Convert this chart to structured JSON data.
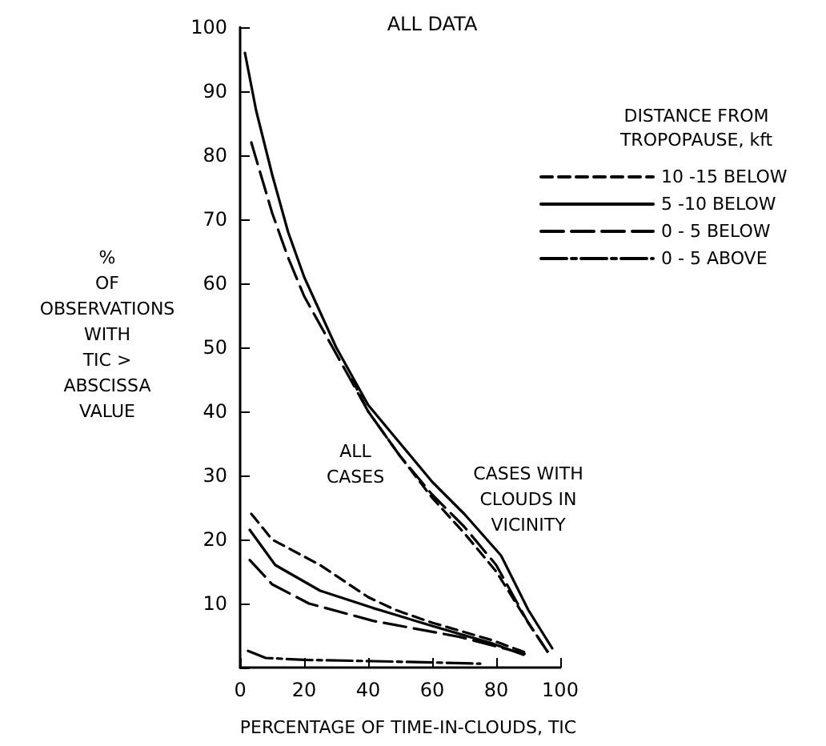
{
  "chart_data": {
    "type": "line",
    "title": "ALL DATA",
    "xlabel": "PERCENTAGE OF TIME-IN-CLOUDS, TIC",
    "ylabel": "%\nOF\nOBSERVATIONS\nWITH\nTIC >\nABSCISSA\nVALUE",
    "legend_title": "DISTANCE FROM\nTROPOPAUSE, kft",
    "xlim": [
      0,
      100
    ],
    "ylim": [
      0,
      100
    ],
    "xticks": [
      0,
      20,
      40,
      60,
      80,
      100
    ],
    "yticks": [
      {
        "value": 0,
        "label": null
      },
      10,
      20,
      30,
      40,
      50,
      60,
      70,
      80,
      90,
      100
    ],
    "grid": false,
    "legend": "right",
    "marker": "none",
    "annotations": [
      "ALL\nCASES",
      "CASES WITH\nCLOUDS IN\nVICINITY"
    ],
    "series": [
      {
        "name": "10 -15 BELOW",
        "color": "#000000",
        "line_style": "dashed",
        "x": [
          35,
          40,
          50,
          60,
          70,
          80,
          90,
          96,
          null,
          3.5,
          10,
          25,
          40,
          48.5,
          60,
          78.5,
          90
        ],
        "values": [
          45,
          40,
          33,
          26.5,
          21,
          15,
          7,
          2.5,
          null,
          24,
          20,
          16,
          11,
          9,
          7,
          4.3,
          2.2
        ]
      },
      {
        "name": "5 -10 BELOW",
        "color": "#000000",
        "line_style": "solid",
        "x": [
          1.5,
          5,
          10,
          15,
          20,
          30,
          40,
          50,
          60,
          70,
          81.5,
          90,
          97.5,
          null,
          3,
          11,
          25,
          41.5,
          60,
          78.5,
          88.5
        ],
        "values": [
          96,
          87,
          77,
          68,
          61,
          50,
          41,
          35,
          29,
          24,
          17.5,
          9,
          3,
          null,
          21.5,
          16,
          12,
          9.3,
          6.5,
          3.8,
          2
        ]
      },
      {
        "name": "0 - 5 BELOW",
        "color": "#000000",
        "line_style": "dashed",
        "x": [
          3.5,
          10,
          15,
          20,
          30,
          40,
          50,
          60,
          70,
          80,
          90,
          96,
          null,
          3,
          10,
          21.5,
          41.5,
          68.5,
          90
        ],
        "values": [
          82,
          71,
          64,
          58,
          49,
          40,
          33,
          27,
          22,
          16,
          7,
          2.5,
          null,
          16.8,
          13,
          10,
          7.3,
          4.8,
          2
        ]
      },
      {
        "name": "0 - 5 ABOVE",
        "color": "#000000",
        "line_style": "dotted",
        "x": [
          2.5,
          8,
          20,
          41.5,
          60,
          75
        ],
        "values": [
          2.6,
          1.5,
          1.2,
          1,
          0.8,
          0.6
        ]
      }
    ]
  }
}
